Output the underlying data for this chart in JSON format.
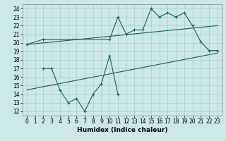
{
  "title": "",
  "xlabel": "Humidex (Indice chaleur)",
  "bg_color": "#cce8e8",
  "grid_color": "#aacccc",
  "line_color": "#1a6060",
  "xlim": [
    -0.5,
    23.5
  ],
  "ylim": [
    11.5,
    24.5
  ],
  "yticks": [
    12,
    13,
    14,
    15,
    16,
    17,
    18,
    19,
    20,
    21,
    22,
    23,
    24
  ],
  "xticks": [
    0,
    1,
    2,
    3,
    4,
    5,
    6,
    7,
    8,
    9,
    10,
    11,
    12,
    13,
    14,
    15,
    16,
    17,
    18,
    19,
    20,
    21,
    22,
    23
  ],
  "line1_x": [
    0,
    2,
    10,
    11,
    12,
    13,
    14,
    15,
    16,
    17,
    18,
    19,
    20,
    21,
    22,
    23
  ],
  "line1_y": [
    19.8,
    20.4,
    20.4,
    23.0,
    21.0,
    21.5,
    21.5,
    24.0,
    23.0,
    23.5,
    23.0,
    23.5,
    22.0,
    20.1,
    19.1,
    19.1
  ],
  "line2_x": [
    0,
    23
  ],
  "line2_y": [
    19.8,
    22.0
  ],
  "line3_x": [
    0,
    23
  ],
  "line3_y": [
    14.5,
    18.8
  ],
  "line4_x": [
    2,
    3,
    4,
    5,
    6,
    7,
    8,
    9,
    10,
    11
  ],
  "line4_y": [
    17.0,
    17.0,
    14.5,
    13.0,
    13.5,
    12.0,
    14.0,
    15.2,
    18.5,
    14.0
  ],
  "tick_fontsize": 5.5,
  "xlabel_fontsize": 6.5,
  "marker_size": 3,
  "linewidth": 0.8
}
